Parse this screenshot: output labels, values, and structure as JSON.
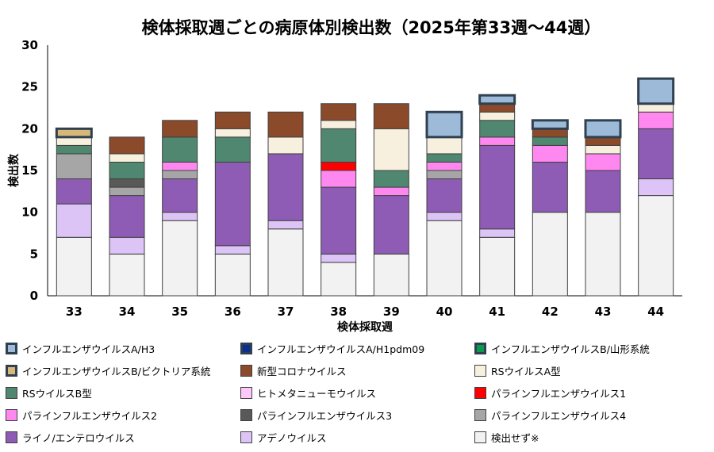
{
  "chart_data": {
    "type": "bar",
    "stacked": true,
    "title": "検体採取週ごとの病原体別検出数（2025年第33週～44週）",
    "xlabel": "検体採取週",
    "ylabel": "検出数",
    "ylim": [
      0,
      30
    ],
    "yticks": [
      0,
      5,
      10,
      15,
      20,
      25,
      30
    ],
    "categories": [
      "33",
      "34",
      "35",
      "36",
      "37",
      "38",
      "39",
      "40",
      "41",
      "42",
      "43",
      "44"
    ],
    "series": [
      {
        "name": "検出せず※",
        "color": "#f2f2f2",
        "border": "#404040",
        "values": [
          7,
          5,
          9,
          5,
          8,
          4,
          5,
          9,
          7,
          10,
          10,
          12
        ]
      },
      {
        "name": "アデノウイルス",
        "color": "#dcc5f6",
        "border": "#404040",
        "values": [
          4,
          2,
          1,
          1,
          1,
          1,
          0,
          1,
          1,
          0,
          0,
          2
        ]
      },
      {
        "name": "ライノ/エンテロウイルス",
        "color": "#8e5cb5",
        "border": "#404040",
        "values": [
          3,
          5,
          4,
          10,
          8,
          8,
          7,
          4,
          10,
          6,
          5,
          6
        ]
      },
      {
        "name": "パラインフルエンザウイルス4",
        "color": "#a6a6a6",
        "border": "#404040",
        "values": [
          3,
          1,
          1,
          0,
          0,
          0,
          0,
          1,
          0,
          0,
          0,
          0
        ]
      },
      {
        "name": "パラインフルエンザウイルス3",
        "color": "#595959",
        "border": "#404040",
        "values": [
          0,
          1,
          0,
          0,
          0,
          0,
          0,
          0,
          0,
          0,
          0,
          0
        ]
      },
      {
        "name": "パラインフルエンザウイルス2",
        "color": "#ff88f0",
        "border": "#404040",
        "values": [
          0,
          0,
          1,
          0,
          0,
          2,
          1,
          1,
          1,
          2,
          2,
          2
        ]
      },
      {
        "name": "パラインフルエンザウイルス1",
        "color": "#ff0000",
        "border": "#404040",
        "values": [
          0,
          0,
          0,
          0,
          0,
          1,
          0,
          0,
          0,
          0,
          0,
          0
        ]
      },
      {
        "name": "ヒトメタニューモウイルス",
        "color": "#ffc8fb",
        "border": "#404040",
        "values": [
          0,
          0,
          0,
          0,
          0,
          0,
          0,
          0,
          0,
          0,
          0,
          0
        ]
      },
      {
        "name": "RSウイルスB型",
        "color": "#4f8770",
        "border": "#404040",
        "values": [
          1,
          2,
          3,
          3,
          0,
          4,
          2,
          1,
          2,
          1,
          0,
          0
        ]
      },
      {
        "name": "RSウイルスA型",
        "color": "#f8f0df",
        "border": "#404040",
        "values": [
          1,
          1,
          0,
          1,
          2,
          1,
          5,
          2,
          1,
          0,
          1,
          1
        ]
      },
      {
        "name": "新型コロナウイルス",
        "color": "#8b4a2a",
        "border": "#404040",
        "values": [
          0,
          2,
          2,
          2,
          3,
          2,
          3,
          0,
          1,
          1,
          1,
          0
        ]
      },
      {
        "name": "インフルエンザウイルスB/ビクトリア系統",
        "color": "#d8b878",
        "border": "#2f4050",
        "values": [
          1,
          0,
          0,
          0,
          0,
          0,
          0,
          0,
          0,
          0,
          0,
          0
        ]
      },
      {
        "name": "インフルエンザウイルスB/山形系統",
        "color": "#0a9a4e",
        "border": "#2f4050",
        "values": [
          0,
          0,
          0,
          0,
          0,
          0,
          0,
          0,
          0,
          0,
          0,
          0
        ]
      },
      {
        "name": "インフルエンザウイルスA/H1pdm09",
        "color": "#0a2f8f",
        "border": "#2f4050",
        "values": [
          0,
          0,
          0,
          0,
          0,
          0,
          0,
          0,
          0,
          0,
          0,
          0
        ]
      },
      {
        "name": "インフルエンザウイルスA/H3",
        "color": "#9dbbd9",
        "border": "#2f4050",
        "values": [
          0,
          0,
          0,
          0,
          0,
          0,
          0,
          3,
          1,
          1,
          2,
          3
        ]
      }
    ],
    "legend": [
      {
        "name": "インフルエンザウイルスA/H3",
        "color": "#9dbbd9",
        "border": "#2f4050"
      },
      {
        "name": "インフルエンザウイルスA/H1pdm09",
        "color": "#0a2f8f",
        "border": "#2f4050"
      },
      {
        "name": "インフルエンザウイルスB/山形系統",
        "color": "#0a9a4e",
        "border": "#2f4050"
      },
      {
        "name": "インフルエンザウイルスB/ビクトリア系統",
        "color": "#d8b878",
        "border": "#2f4050"
      },
      {
        "name": "新型コロナウイルス",
        "color": "#8b4a2a",
        "border": "#404040"
      },
      {
        "name": "RSウイルスA型",
        "color": "#f8f0df",
        "border": "#404040"
      },
      {
        "name": "RSウイルスB型",
        "color": "#4f8770",
        "border": "#404040"
      },
      {
        "name": "ヒトメタニューモウイルス",
        "color": "#ffc8fb",
        "border": "#404040"
      },
      {
        "name": "パラインフルエンザウイルス1",
        "color": "#ff0000",
        "border": "#404040"
      },
      {
        "name": "パラインフルエンザウイルス2",
        "color": "#ff88f0",
        "border": "#404040"
      },
      {
        "name": "パラインフルエンザウイルス3",
        "color": "#595959",
        "border": "#404040"
      },
      {
        "name": "パラインフルエンザウイルス4",
        "color": "#a6a6a6",
        "border": "#404040"
      },
      {
        "name": "ライノ/エンテロウイルス",
        "color": "#8e5cb5",
        "border": "#404040"
      },
      {
        "name": "アデノウイルス",
        "color": "#dcc5f6",
        "border": "#404040"
      },
      {
        "name": "検出せず※",
        "color": "#f2f2f2",
        "border": "#404040"
      }
    ],
    "legend_position": "bottom"
  }
}
